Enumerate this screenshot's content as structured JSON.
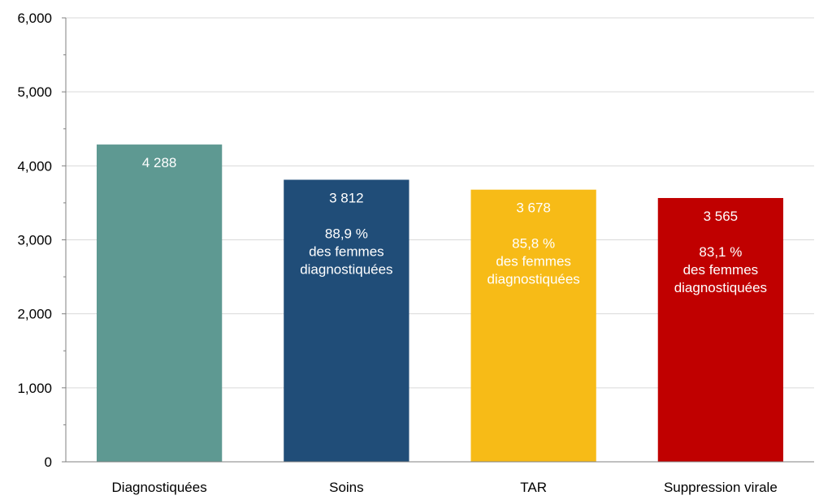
{
  "chart_data": {
    "type": "bar",
    "categories": [
      "Diagnostiquées",
      "Soins",
      "TAR",
      "Suppression virale"
    ],
    "values": [
      4288,
      3812,
      3678,
      3565
    ],
    "value_labels": [
      "4 288",
      "3 812",
      "3 678",
      "3 565"
    ],
    "annotations": [
      null,
      {
        "percent": "88,9 %",
        "line1": "des femmes",
        "line2": "diagnostiquées"
      },
      {
        "percent": "85,8 %",
        "line1": "des femmes",
        "line2": "diagnostiquées"
      },
      {
        "percent": "83,1 %",
        "line1": "des femmes",
        "line2": "diagnostiquées"
      }
    ],
    "colors": [
      "#5e9992",
      "#204d78",
      "#f7bb17",
      "#c00000"
    ],
    "y_ticks": [
      0,
      1000,
      2000,
      3000,
      4000,
      5000,
      6000
    ],
    "y_tick_labels": [
      "0",
      "1,000",
      "2,000",
      "3,000",
      "4,000",
      "5,000",
      "6,000"
    ],
    "ylim": [
      0,
      6000
    ],
    "grid": true,
    "title": "",
    "xlabel": "",
    "ylabel": ""
  }
}
